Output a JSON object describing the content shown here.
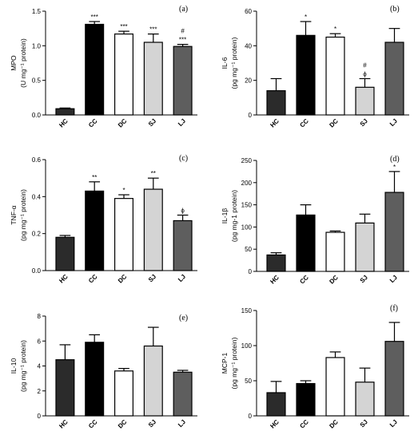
{
  "chart_data": [
    {
      "type": "bar",
      "panel": "(a)",
      "ylabel_line1": "MPO",
      "ylabel_line2": "(U mg⁻¹ protein)",
      "categories": [
        "HC",
        "CC",
        "DC",
        "SJ",
        "LJ"
      ],
      "values": [
        0.09,
        1.31,
        1.17,
        1.05,
        0.99
      ],
      "errors": [
        0.01,
        0.04,
        0.04,
        0.12,
        0.03
      ],
      "significance": [
        "",
        "***",
        "***",
        "***",
        "#\n***"
      ],
      "ylim": [
        0,
        1.5
      ],
      "yticks": [
        "0.0",
        "0.5",
        "1.0",
        "1.5"
      ],
      "tick_values": [
        0,
        0.5,
        1.0,
        1.5
      ]
    },
    {
      "type": "bar",
      "panel": "(b)",
      "ylabel_line1": "IL-6",
      "ylabel_line2": "(pg mg⁻¹ protein)",
      "categories": [
        "HC",
        "CC",
        "DC",
        "SJ",
        "LJ"
      ],
      "values": [
        14,
        46,
        45,
        16,
        42
      ],
      "errors": [
        7,
        8,
        2,
        5,
        8
      ],
      "significance": [
        "",
        "*",
        "*",
        "#\nϕ",
        ""
      ],
      "ylim": [
        0,
        60
      ],
      "yticks": [
        "0",
        "20",
        "40",
        "60"
      ],
      "tick_values": [
        0,
        20,
        40,
        60
      ]
    },
    {
      "type": "bar",
      "panel": "(c)",
      "ylabel_line1": "TNF-α",
      "ylabel_line2": "(pg mg⁻¹ protein)",
      "categories": [
        "HC",
        "CC",
        "DC",
        "SJ",
        "LJ"
      ],
      "values": [
        0.18,
        0.43,
        0.39,
        0.44,
        0.27
      ],
      "errors": [
        0.01,
        0.05,
        0.02,
        0.06,
        0.03
      ],
      "significance": [
        "",
        "**",
        "*",
        "**",
        "ϕ"
      ],
      "ylim": [
        0,
        0.6
      ],
      "yticks": [
        "0.0",
        "0.2",
        "0.4",
        "0.6"
      ],
      "tick_values": [
        0,
        0.2,
        0.4,
        0.6
      ]
    },
    {
      "type": "bar",
      "panel": "(d)",
      "ylabel_line1": "IL-1β",
      "ylabel_line2": "(pg mg-1 protein)",
      "categories": [
        "HC",
        "CC",
        "DC",
        "SJ",
        "LJ"
      ],
      "values": [
        37,
        127,
        88,
        109,
        178
      ],
      "errors": [
        5,
        23,
        3,
        20,
        47
      ],
      "significance": [
        "",
        "",
        "",
        "",
        "*"
      ],
      "ylim": [
        0,
        250
      ],
      "yticks": [
        "0",
        "50",
        "100",
        "150",
        "200",
        "250"
      ],
      "tick_values": [
        0,
        50,
        100,
        150,
        200,
        250
      ]
    },
    {
      "type": "bar",
      "panel": "(e)",
      "ylabel_line1": "IL-10",
      "ylabel_line2": "(pg mg⁻¹ protein)",
      "categories": [
        "HC",
        "CC",
        "DC",
        "SJ",
        "LJ"
      ],
      "values": [
        4.5,
        5.9,
        3.6,
        5.6,
        3.5
      ],
      "errors": [
        1.2,
        0.6,
        0.2,
        1.5,
        0.15
      ],
      "significance": [
        "",
        "",
        "",
        "",
        ""
      ],
      "ylim": [
        0,
        8
      ],
      "yticks": [
        "0",
        "2",
        "4",
        "6",
        "8"
      ],
      "tick_values": [
        0,
        2,
        4,
        6,
        8
      ]
    },
    {
      "type": "bar",
      "panel": "(f)",
      "ylabel_line1": "MCP-1",
      "ylabel_line2": "(pg mg⁻¹ protein)",
      "categories": [
        "HC",
        "CC",
        "DC",
        "SJ",
        "LJ"
      ],
      "values": [
        33,
        46,
        83,
        48,
        106
      ],
      "errors": [
        16,
        4,
        8,
        20,
        27
      ],
      "significance": [
        "",
        "",
        "",
        "",
        ""
      ],
      "ylim": [
        0,
        150
      ],
      "yticks": [
        "0",
        "50",
        "100",
        "150"
      ],
      "tick_values": [
        0,
        50,
        100,
        150
      ]
    }
  ],
  "bar_fills": [
    "#2b2b2b",
    "#000000",
    "#ffffff",
    "#d4d4d4",
    "#5e5e5e"
  ]
}
